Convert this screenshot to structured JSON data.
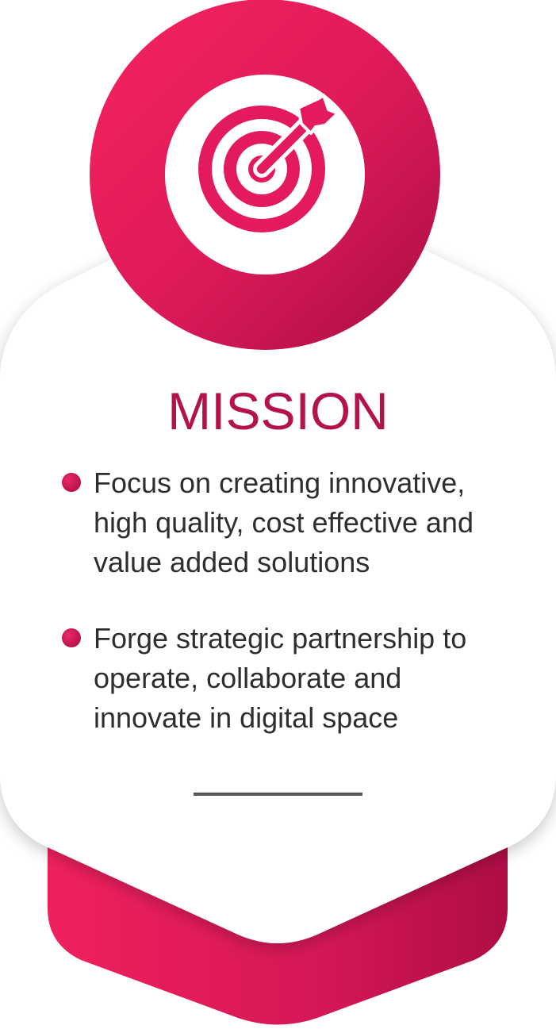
{
  "card": {
    "title": "MISSION",
    "icon": "target-arrow-icon",
    "bullets": [
      {
        "text": "Focus on creating innovative, high quality, cost effective and value added solutions"
      },
      {
        "text": "Forge strategic partnership to operate, collaborate and innovate in digital space"
      }
    ]
  },
  "colors": {
    "accent": "#e91e63",
    "accent_dark": "#b0104a",
    "title": "#b3124d",
    "text": "#2e2e2e",
    "divider": "#555555",
    "card": "#ffffff"
  }
}
